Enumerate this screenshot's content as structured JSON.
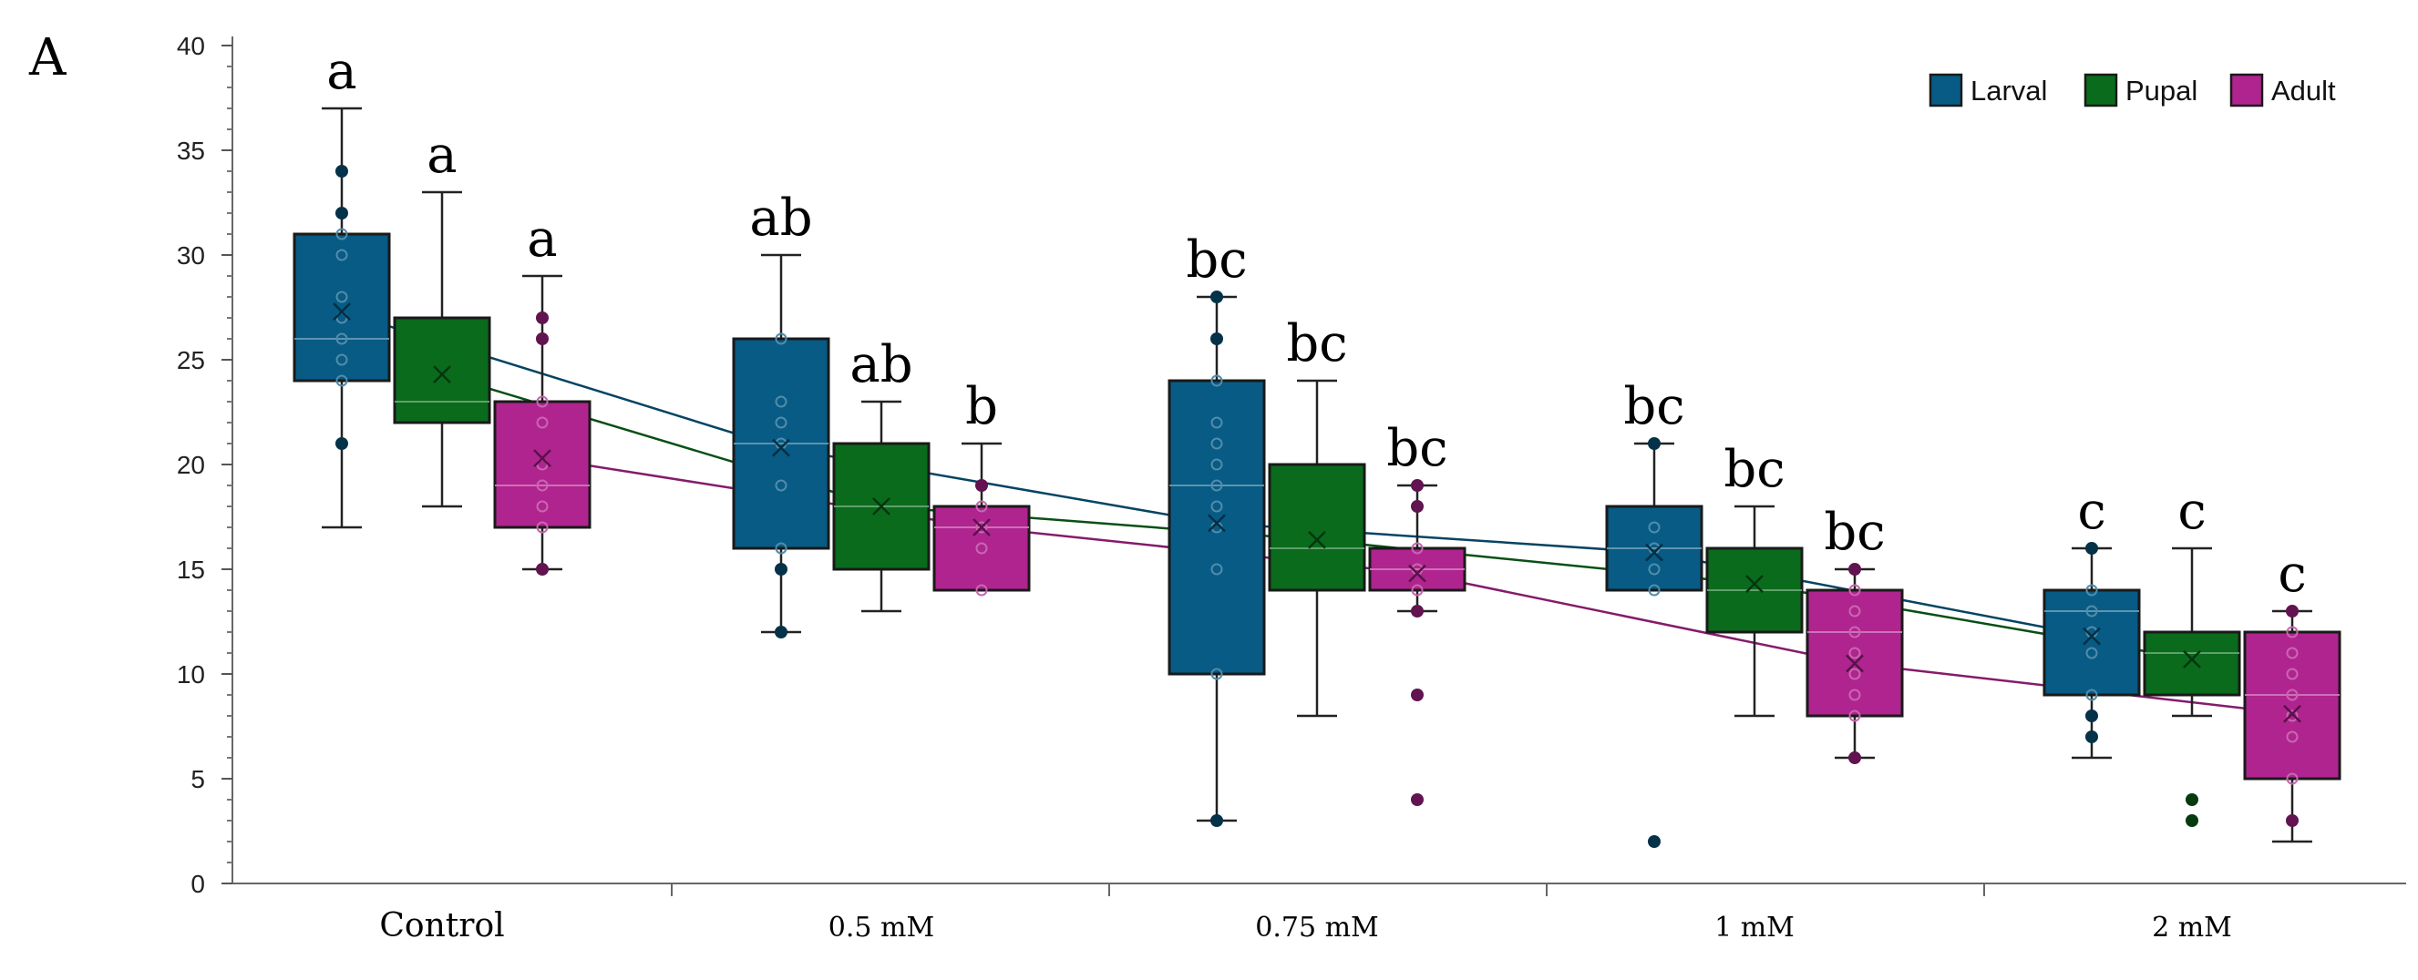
{
  "panel_label": "A",
  "chart_data": {
    "type": "box",
    "title": "",
    "xlabel": "",
    "ylabel": "",
    "ylim": [
      0,
      40
    ],
    "yticks": [
      0,
      5,
      10,
      15,
      20,
      25,
      30,
      35,
      40
    ],
    "categories": [
      "Control",
      "0.5 mM",
      "0.75 mM",
      "1 mM",
      "2 mM"
    ],
    "legend_position": "top-right",
    "series": [
      {
        "name": "Larval",
        "color": "#075b85",
        "boxes": [
          {
            "category": "Control",
            "min": 17,
            "q1": 24,
            "median": 26,
            "q3": 31,
            "max": 37,
            "mean": 27.3,
            "letters": "a",
            "points": [
              21,
              24,
              25,
              26,
              27,
              28,
              30,
              31,
              32,
              34
            ],
            "outliers": []
          },
          {
            "category": "0.5 mM",
            "min": 12,
            "q1": 16,
            "median": 21,
            "q3": 26,
            "max": 30,
            "mean": 20.8,
            "letters": "ab",
            "points": [
              12,
              15,
              16,
              19,
              21,
              22,
              23,
              26
            ],
            "outliers": []
          },
          {
            "category": "0.75 mM",
            "min": 3,
            "q1": 10,
            "median": 19,
            "q3": 24,
            "max": 28,
            "mean": 17.2,
            "letters": "bc",
            "points": [
              3,
              10,
              15,
              17,
              18,
              19,
              20,
              21,
              22,
              24,
              26,
              28
            ],
            "outliers": []
          },
          {
            "category": "1 mM",
            "min": 14,
            "q1": 14,
            "median": 16,
            "q3": 18,
            "max": 21,
            "mean": 15.8,
            "letters": "bc",
            "points": [
              14,
              15,
              16,
              17,
              21
            ],
            "outliers": [
              2
            ]
          },
          {
            "category": "2 mM",
            "min": 6,
            "q1": 9,
            "median": 13,
            "q3": 14,
            "max": 16,
            "mean": 11.8,
            "letters": "c",
            "points": [
              7,
              8,
              9,
              11,
              12,
              13,
              14,
              16
            ],
            "outliers": []
          }
        ]
      },
      {
        "name": "Pupal",
        "color": "#0a6b1c",
        "boxes": [
          {
            "category": "Control",
            "min": 18,
            "q1": 22,
            "median": 23,
            "q3": 27,
            "max": 33,
            "mean": 24.3,
            "letters": "a",
            "points": [],
            "outliers": []
          },
          {
            "category": "0.5 mM",
            "min": 13,
            "q1": 15,
            "median": 18,
            "q3": 21,
            "max": 23,
            "mean": 18,
            "letters": "ab",
            "points": [],
            "outliers": []
          },
          {
            "category": "0.75 mM",
            "min": 8,
            "q1": 14,
            "median": 16,
            "q3": 20,
            "max": 24,
            "mean": 16.4,
            "letters": "bc",
            "points": [],
            "outliers": []
          },
          {
            "category": "1 mM",
            "min": 8,
            "q1": 12,
            "median": 14,
            "q3": 16,
            "max": 18,
            "mean": 14.3,
            "letters": "bc",
            "points": [],
            "outliers": []
          },
          {
            "category": "2 mM",
            "min": 8,
            "q1": 9,
            "median": 11,
            "q3": 12,
            "max": 16,
            "mean": 10.7,
            "letters": "c",
            "points": [],
            "outliers": [
              3,
              4
            ]
          }
        ]
      },
      {
        "name": "Adult",
        "color": "#b0248f",
        "boxes": [
          {
            "category": "Control",
            "min": 15,
            "q1": 17,
            "median": 19,
            "q3": 23,
            "max": 29,
            "mean": 20.3,
            "letters": "a",
            "points": [
              15,
              17,
              18,
              19,
              20,
              22,
              23,
              26,
              27
            ],
            "outliers": []
          },
          {
            "category": "0.5 mM",
            "min": 14,
            "q1": 14,
            "median": 17,
            "q3": 18,
            "max": 21,
            "mean": 17,
            "letters": "b",
            "points": [
              14,
              16,
              17,
              18,
              19
            ],
            "outliers": []
          },
          {
            "category": "0.75 mM",
            "min": 13,
            "q1": 14,
            "median": 15,
            "q3": 16,
            "max": 19,
            "mean": 14.8,
            "letters": "bc",
            "points": [
              13,
              14,
              15,
              16,
              18,
              19
            ],
            "outliers": [
              4,
              9
            ]
          },
          {
            "category": "1 mM",
            "min": 6,
            "q1": 8,
            "median": 12,
            "q3": 14,
            "max": 15,
            "mean": 10.5,
            "letters": "bc",
            "points": [
              6,
              8,
              9,
              10,
              11,
              12,
              13,
              14,
              15
            ],
            "outliers": []
          },
          {
            "category": "2 mM",
            "min": 2,
            "q1": 5,
            "median": 9,
            "q3": 12,
            "max": 13,
            "mean": 8.1,
            "letters": "c",
            "points": [
              3,
              5,
              7,
              8,
              9,
              10,
              11,
              12,
              13
            ],
            "outliers": []
          }
        ]
      }
    ]
  }
}
